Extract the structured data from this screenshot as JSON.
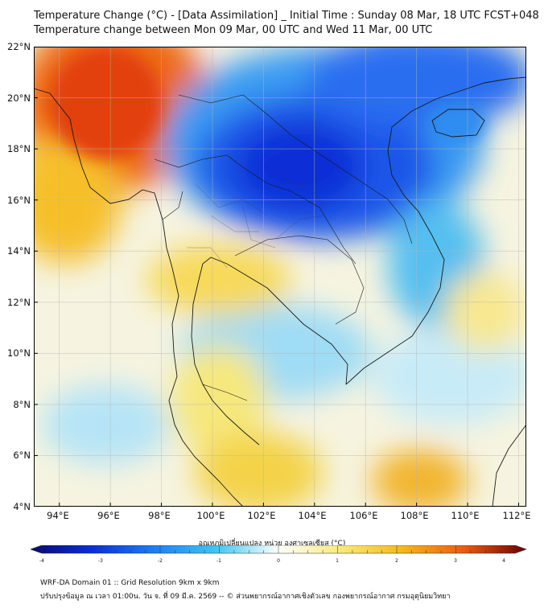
{
  "header": {
    "title_line1": "Temperature Change (°C) - [Data Assimilation] _ Initial Time : Sunday 08 Mar, 18 UTC FCST+048",
    "title_line2": "Temperature change between Mon 09 Mar, 00 UTC and Wed 11 Mar, 00 UTC"
  },
  "map": {
    "lat_ticks": [
      "22°N",
      "20°N",
      "18°N",
      "16°N",
      "14°N",
      "12°N",
      "10°N",
      "8°N",
      "6°N",
      "4°N"
    ],
    "lon_ticks": [
      "94°E",
      "96°E",
      "98°E",
      "100°E",
      "102°E",
      "104°E",
      "106°E",
      "108°E",
      "110°E",
      "112°E"
    ],
    "lat_range": [
      4,
      22
    ],
    "lon_range": [
      93,
      112.3
    ]
  },
  "colorbar": {
    "label": "อุณหภูมิเปลี่ยนแปลง หน่วย องศาเซลเซียส (°C)",
    "tick_labels": [
      "-4",
      "-3",
      "-2",
      "-1",
      "0",
      "1",
      "2",
      "3",
      "4"
    ],
    "range": [
      -4,
      4
    ],
    "colors": {
      "m4": "#08086e",
      "m3": "#0a2fd8",
      "m2": "#1f7ef0",
      "m1": "#3fc6f2",
      "zero": "#ffffff",
      "p1": "#f9e97a",
      "p2": "#f4b81a",
      "p3": "#ec5a12",
      "p4": "#6b0000"
    }
  },
  "footer": {
    "line1": "WRF-DA Domain 01 :: Grid Resolution 9km x 9km",
    "line2": "ปรับปรุงข้อมูล ณ เวลา 01:00น. วัน จ. ที่ 09 มี.ค. 2569 -- © ส่วนพยากรณ์อากาศเชิงตัวเลข กองพยากรณ์อากาศ กรมอุตุนิยมวิทยา"
  }
}
